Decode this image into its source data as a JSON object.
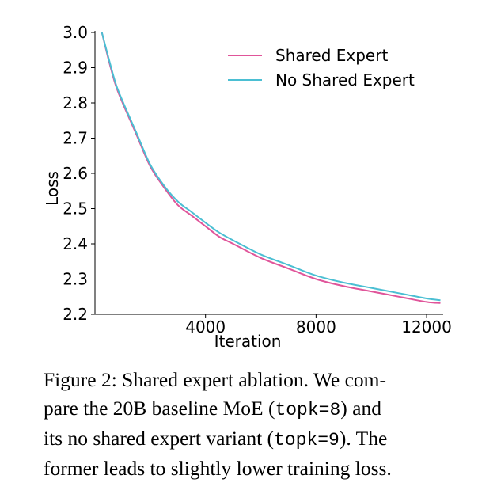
{
  "chart_data": {
    "type": "line",
    "xlabel": "Iteration",
    "ylabel": "Loss",
    "xlim": [
      0,
      12600
    ],
    "ylim": [
      2.2,
      3.0
    ],
    "xticks": [
      4000,
      8000,
      12000
    ],
    "xtick_labels": [
      "4000",
      "8000",
      "12000"
    ],
    "yticks": [
      2.2,
      2.3,
      2.4,
      2.5,
      2.6,
      2.7,
      2.8,
      2.9,
      3.0
    ],
    "ytick_labels": [
      "2.2",
      "2.3",
      "2.4",
      "2.5",
      "2.6",
      "2.7",
      "2.8",
      "2.9",
      "3.0"
    ],
    "grid": false,
    "legend_position": "top-right",
    "series": [
      {
        "name": "Shared Expert",
        "color": "#e0559a",
        "x": [
          250,
          500,
          750,
          1000,
          1500,
          2000,
          2500,
          3000,
          3500,
          4000,
          4500,
          5000,
          6000,
          7000,
          8000,
          9000,
          10000,
          11000,
          12000,
          12500
        ],
        "y": [
          3.0,
          2.92,
          2.85,
          2.8,
          2.71,
          2.62,
          2.56,
          2.51,
          2.48,
          2.45,
          2.42,
          2.4,
          2.36,
          2.33,
          2.3,
          2.28,
          2.265,
          2.25,
          2.235,
          2.232
        ]
      },
      {
        "name": "No Shared Expert",
        "color": "#4bbfd3",
        "x": [
          250,
          500,
          750,
          1000,
          1500,
          2000,
          2500,
          3000,
          3500,
          4000,
          4500,
          5000,
          6000,
          7000,
          8000,
          9000,
          10000,
          11000,
          12000,
          12500
        ],
        "y": [
          3.0,
          2.925,
          2.855,
          2.805,
          2.715,
          2.625,
          2.565,
          2.52,
          2.49,
          2.46,
          2.432,
          2.41,
          2.37,
          2.34,
          2.31,
          2.29,
          2.275,
          2.26,
          2.245,
          2.24
        ]
      }
    ]
  },
  "caption": {
    "lines": [
      [
        {
          "text": "Figure 2: Shared expert ablation. We com-",
          "mono": false
        }
      ],
      [
        {
          "text": "pare the 20B baseline MoE (",
          "mono": false
        },
        {
          "text": "topk=8",
          "mono": true
        },
        {
          "text": ") and",
          "mono": false
        }
      ],
      [
        {
          "text": "its no shared expert variant (",
          "mono": false
        },
        {
          "text": "topk=9",
          "mono": true
        },
        {
          "text": "). The",
          "mono": false
        }
      ],
      [
        {
          "text": "former leads to slightly lower training loss.",
          "mono": false
        }
      ]
    ]
  }
}
